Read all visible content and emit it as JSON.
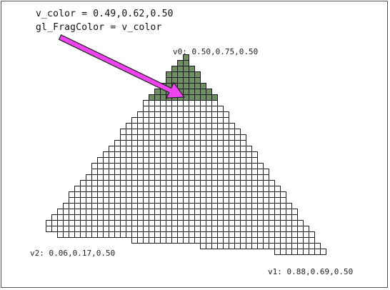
{
  "shader": {
    "line1": "v_color = 0.49,0.62,0.50",
    "line2": "gl_FragColor = v_color"
  },
  "vertices": {
    "v0": "v0: 0.50,0.75,0.50",
    "v1": "v1: 0.88,0.69,0.50",
    "v2": "v2: 0.06,0.17,0.50"
  },
  "colors": {
    "fragment_fill": "#6e8e64",
    "cell_stroke": "#1a1a1a",
    "arrow": "#ee44ee"
  }
}
